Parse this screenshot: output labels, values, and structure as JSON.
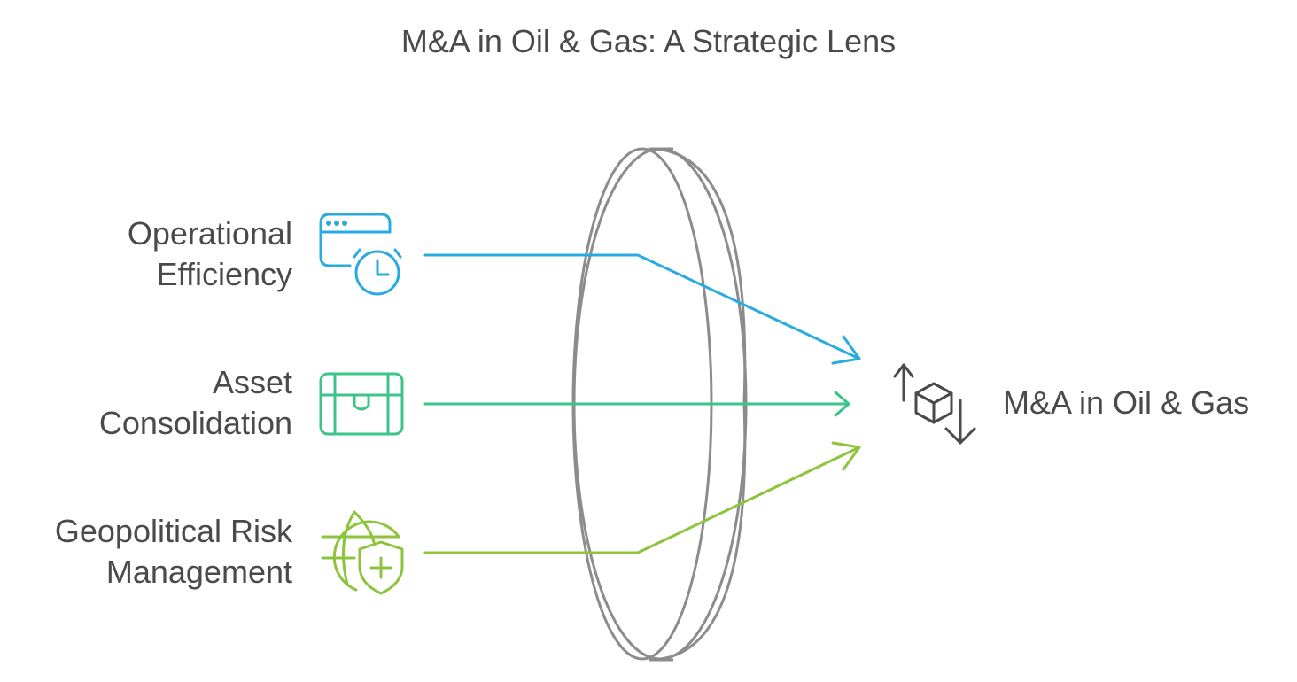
{
  "title": "M&A in Oil & Gas: A Strategic Lens",
  "inputs": [
    {
      "line1": "Operational",
      "line2": "Efficiency",
      "icon": "browser-clock-icon",
      "color": "#29abe2"
    },
    {
      "line1": "Asset",
      "line2": "Consolidation",
      "icon": "treasure-chest-icon",
      "color": "#3cc48a"
    },
    {
      "line1": "Geopolitical Risk",
      "line2": "Management",
      "icon": "globe-shield-icon",
      "color": "#8cc43c"
    }
  ],
  "output": {
    "label": "M&A in Oil & Gas",
    "icon": "exchange-box-icon"
  },
  "lens_color": "#8c8c8c"
}
